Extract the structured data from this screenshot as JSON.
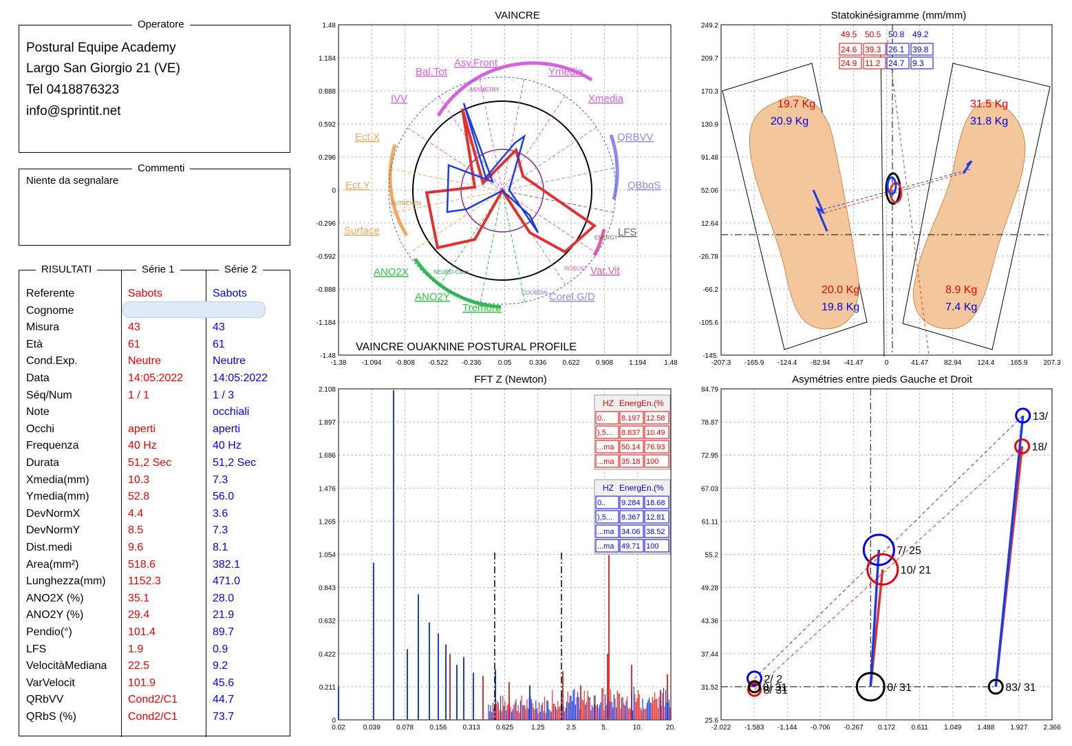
{
  "operator": {
    "title": "Operatore",
    "lines": [
      "Postural Equipe Academy",
      "Largo San Giorgio 21 (VE)",
      "Tel 0418876323",
      "info@sprintit.net"
    ]
  },
  "comments": {
    "title": "Commenti",
    "text": "Niente da segnalare"
  },
  "results": {
    "title": "RISULTATI",
    "serie1_title": "Série 1",
    "serie2_title": "Série 2",
    "rows": [
      {
        "label": "Referente",
        "s1": "Sabots",
        "s2": "Sabots"
      },
      {
        "label": "Cognome",
        "s1": "",
        "s2": ""
      },
      {
        "label": "Misura",
        "s1": "43",
        "s2": "43"
      },
      {
        "label": "Età",
        "s1": "61",
        "s2": "61"
      },
      {
        "label": "Cond.Exp.",
        "s1": "Neutre",
        "s2": "Neutre"
      },
      {
        "label": "Data",
        "s1": "14:05:2022",
        "s2": "14:05:2022"
      },
      {
        "label": "Séq/Num",
        "s1": " 1 /  1",
        "s2": " 1 /  3"
      },
      {
        "label": "Note",
        "s1": "",
        "s2": "occhiali"
      },
      {
        "label": "Occhi",
        "s1": "aperti",
        "s2": "aperti"
      },
      {
        "label": "Frequenza",
        "s1": "40 Hz",
        "s2": "40 Hz"
      },
      {
        "label": "Durata",
        "s1": "51,2 Sec",
        "s2": "51,2 Sec"
      },
      {
        "label": "Xmedia(mm)",
        "s1": "10.3",
        "s2": "7.3"
      },
      {
        "label": "Ymedia(mm)",
        "s1": "52.8",
        "s2": "56.0"
      },
      {
        "label": "DevNormX",
        "s1": "4.4",
        "s2": "3.6"
      },
      {
        "label": "DevNormY",
        "s1": "8.5",
        "s2": "7.3"
      },
      {
        "label": "Dist.medi",
        "s1": "9.6",
        "s2": "8.1"
      },
      {
        "label": "Area(mm²)",
        "s1": "518.6",
        "s2": "382.1"
      },
      {
        "label": "Lunghezza(mm)",
        "s1": "1152.3",
        "s2": "471.0"
      },
      {
        "label": "ANO2X (%)",
        "s1": "35.1",
        "s2": "28.0"
      },
      {
        "label": "ANO2Y (%)",
        "s1": "29.4",
        "s2": "21.9"
      },
      {
        "label": "Pendio(°)",
        "s1": "101.4",
        "s2": "89.7"
      },
      {
        "label": "LFS",
        "s1": "1.9",
        "s2": "0.9"
      },
      {
        "label": "VelocitàMediana",
        "s1": "22.5",
        "s2": "9.2"
      },
      {
        "label": "VarVelocit",
        "s1": "101.9",
        "s2": "45.6"
      },
      {
        "label": "QRbVV",
        "s1": "Cond2/C1",
        "s2": "44.7"
      },
      {
        "label": "QRbS (%)",
        "s1": "Cond2/C1",
        "s2": "73.7"
      }
    ]
  },
  "chart_data": [
    {
      "type": "scatter",
      "title": "VAINCRE",
      "subtitle": "VAINCRE  OUAKNINE POSTURAL PROFILE",
      "x_ticks": [
        "-1.38",
        "-1.094",
        "-0.808",
        "-0.522",
        "-0.236",
        "0.05",
        "0.336",
        "0.622",
        "0.908",
        "1.194",
        "1.48"
      ],
      "y_ticks": [
        "1.48",
        "1.184",
        "0.888",
        "0.592",
        "0.296",
        "0",
        "-0.296",
        "-0.592",
        "-0.888",
        "-1.184",
        "-1.48"
      ],
      "axis_labels": [
        "Asy.Front",
        "Ymedia",
        "Xmedia",
        "QRBVV",
        "QBbqS",
        "LFS",
        "Var.Vit",
        "Corel.G/D",
        "Tremorø",
        "ANO2Y",
        "ANO2X",
        "Surface",
        "Ect.Y",
        "Ect.X",
        "IVV",
        "Bal.Tot"
      ],
      "arc_labels": [
        "ASYMETRY",
        "ENERGY",
        "COORDIN",
        "NEURO-Contr",
        "AUTREVEN",
        "ROBUST"
      ],
      "xlim": [
        -1.38,
        1.48
      ],
      "ylim": [
        -1.48,
        1.48
      ],
      "grid": true
    },
    {
      "type": "scatter",
      "title": "Statokinésigramme (mm/mm)",
      "x_ticks": [
        "-207.3",
        "-165.9",
        "-124.4",
        "-82.94",
        "-41.47",
        "0",
        "41.47",
        "82.94",
        "124.4",
        "165.9",
        "207.3"
      ],
      "y_ticks": [
        "249.2",
        "209.7",
        "170.3",
        "130.9",
        "91.48",
        "52.06",
        "12.64",
        "-26.78",
        "-66.2",
        "-105.6",
        "-145."
      ],
      "xlim": [
        -207.3,
        207.3
      ],
      "ylim": [
        -145,
        249.2
      ],
      "top_values_s1": [
        "49.5",
        "50.5"
      ],
      "top_values_s2": [
        "50.8",
        "49.2"
      ],
      "box_values_s1": [
        "24.6",
        "39.3",
        "24.9",
        "11.2"
      ],
      "box_values_s2": [
        "26.1",
        "39.8",
        "24.7",
        "9.3"
      ],
      "foot_loads": {
        "left_top_s1": "19.7 Kg",
        "left_top_s2": "20.9 Kg",
        "right_top_s1": "31.5 Kg",
        "right_top_s2": "31.8 Kg",
        "left_bottom_s1": "20.0 Kg",
        "left_bottom_s2": "19.8 Kg",
        "right_bottom_s1": "8.9 Kg",
        "right_bottom_s2": "7.4 Kg"
      },
      "grid": true
    },
    {
      "type": "bar",
      "title": "FFT Z (Newton)",
      "x_ticks": [
        "0.02",
        "0.039",
        "0.078",
        "0.156",
        "0.313",
        "0.625",
        "1.25",
        "2.5",
        "5.",
        "10.",
        "20."
      ],
      "y_ticks": [
        "2.108",
        "1.897",
        "1.686",
        "1.476",
        "1.265",
        "1.054",
        "0.843",
        "0.632",
        "0.422",
        "0.211",
        "0"
      ],
      "ylim": [
        0,
        2.108
      ],
      "table_header": [
        "HZ",
        "EnergEn.(%"
      ],
      "table_s1": [
        [
          "0..",
          "8.197",
          "12.58"
        ],
        [
          "),5...",
          "8.837",
          "10.49"
        ],
        [
          "...ma",
          "50.14",
          "76.93"
        ],
        [
          "...ma",
          "35.18",
          "100"
        ]
      ],
      "table_s2": [
        [
          "0..",
          "9.284",
          "18.68"
        ],
        [
          "),5...",
          "8.367",
          "12.81"
        ],
        [
          "...ma",
          "34.06",
          "38.52"
        ],
        [
          "...ma",
          "49.71",
          "100"
        ]
      ],
      "grid": true
    },
    {
      "type": "scatter",
      "title": "Asymétries entre pieds Gauche et Droit",
      "x_ticks": [
        "-2.022",
        "-1.583",
        "-1.144",
        "-0.706",
        "-0.267",
        "0.172",
        "0.611",
        "1.049",
        "1.488",
        "1.927",
        "2.366"
      ],
      "y_ticks": [
        "84.79",
        "78.87",
        "72.95",
        "67.03",
        "61.11",
        "55.2",
        "49.28",
        "43.36",
        "37.44",
        "31.52",
        "25.6"
      ],
      "xlim": [
        -2.022,
        2.366
      ],
      "ylim": [
        25.6,
        84.79
      ],
      "series": [
        {
          "name": "",
          "color": "#0000e6",
          "points": [
            {
              "x": -1.58,
              "y": 33.0,
              "label": "2/ 2"
            },
            {
              "x": 0.07,
              "y": 56.0,
              "label": "7/ 25"
            },
            {
              "x": 1.98,
              "y": 80.0,
              "label": "13/"
            }
          ]
        },
        {
          "name": "",
          "color": "#e60000",
          "points": [
            {
              "x": -1.58,
              "y": 31.0,
              "label": "8/ 31"
            },
            {
              "x": 0.12,
              "y": 52.5,
              "label": "10/ 21"
            },
            {
              "x": 1.97,
              "y": 74.5,
              "label": "18/"
            }
          ]
        },
        {
          "name": "",
          "color": "#000000",
          "points": [
            {
              "x": -1.58,
              "y": 31.52,
              "label": "8/ 31"
            },
            {
              "x": -0.04,
              "y": 31.52,
              "label": "0/ 31"
            },
            {
              "x": 1.62,
              "y": 31.52,
              "label": "83/ 31"
            }
          ]
        }
      ],
      "grid": true
    }
  ],
  "colors": {
    "s1": "#e60000",
    "s2": "#0000e6",
    "foot": "#f3c79b"
  }
}
